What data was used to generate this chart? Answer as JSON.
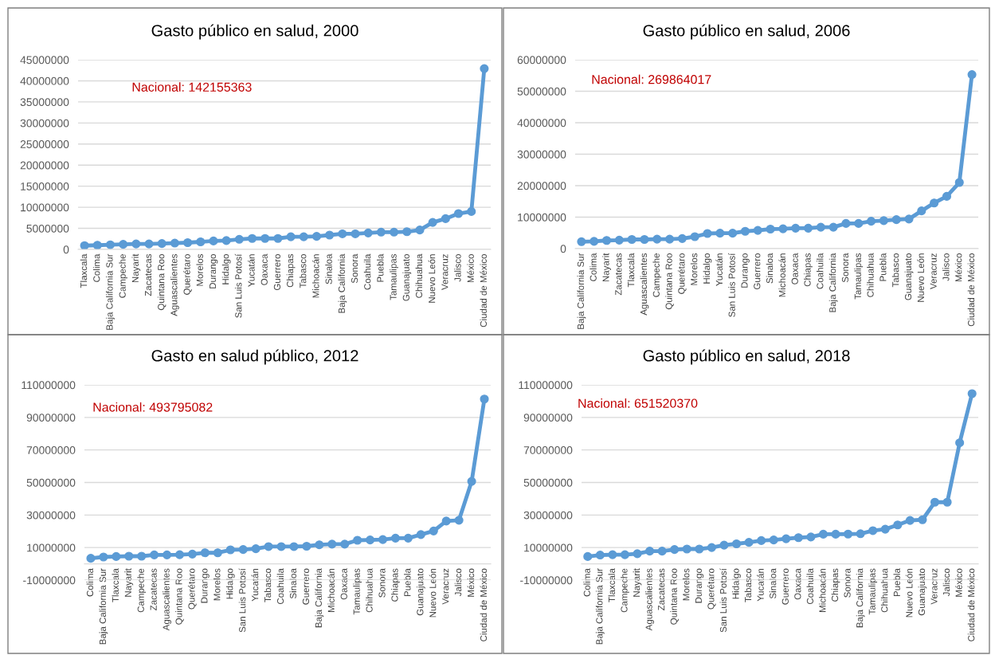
{
  "chart_data": [
    {
      "type": "line",
      "title": "Gasto público en salud, 2000",
      "annotations": [
        "Nacional: 142155363"
      ],
      "grid": "y",
      "marker": "circle",
      "line_style": "solid",
      "categories": [
        "Tlaxcala",
        "Colima",
        "Baja California Sur",
        "Campeche",
        "Nayarit",
        "Zacatecas",
        "Quintana Roo",
        "Aguascalientes",
        "Querétaro",
        "Morelos",
        "Durango",
        "Hidalgo",
        "San Luis Potosí",
        "Yucatán",
        "Oaxaca",
        "Guerrero",
        "Chiapas",
        "Tabasco",
        "Michoacán",
        "Sinaloa",
        "Baja California",
        "Sonora",
        "Coahuila",
        "Puebla",
        "Tamaulipas",
        "Guanajuato",
        "Chihuahua",
        "Nuevo León",
        "Veracruz",
        "Jalisco",
        "México",
        "Ciudad de México"
      ],
      "series": [
        {
          "color": "#5b9bd5",
          "values": [
            900000,
            1000000,
            1100000,
            1200000,
            1300000,
            1300000,
            1400000,
            1500000,
            1600000,
            1800000,
            2000000,
            2100000,
            2400000,
            2600000,
            2600000,
            2600000,
            3000000,
            3000000,
            3100000,
            3400000,
            3700000,
            3700000,
            3900000,
            4100000,
            4100000,
            4200000,
            4600000,
            6400000,
            7300000,
            8500000,
            9000000,
            42900000
          ]
        }
      ],
      "ylim": [
        0,
        45000000
      ],
      "yticks": [
        0,
        5000000,
        10000000,
        15000000,
        20000000,
        25000000,
        30000000,
        35000000,
        40000000,
        45000000
      ]
    },
    {
      "type": "line",
      "title": "Gasto público en salud, 2006",
      "annotations": [
        "Nacional: 269864017"
      ],
      "grid": "y",
      "marker": "circle",
      "line_style": "solid",
      "categories": [
        "Baja California Sur",
        "Colima",
        "Nayarit",
        "Zacatecas",
        "Tlaxcala",
        "Aguascalientes",
        "Campeche",
        "Quintana Roo",
        "Querétaro",
        "Morelos",
        "Hidalgo",
        "Yucatán",
        "San Luis Potosí",
        "Durango",
        "Guerrero",
        "Sinaloa",
        "Michoacán",
        "Oaxaca",
        "Chiapas",
        "Coahuila",
        "Baja California",
        "Sonora",
        "Tamaulipas",
        "Chihuahua",
        "Puebla",
        "Tabasco",
        "Guanajuato",
        "Nuevo León",
        "Veracruz",
        "Jalisco",
        "México",
        "Ciudad de México"
      ],
      "series": [
        {
          "color": "#5b9bd5",
          "values": [
            2200000,
            2300000,
            2600000,
            2700000,
            2900000,
            2900000,
            3000000,
            3000000,
            3200000,
            3800000,
            4800000,
            4900000,
            4900000,
            5500000,
            5800000,
            6200000,
            6300000,
            6500000,
            6500000,
            6800000,
            6800000,
            8000000,
            8000000,
            8700000,
            8900000,
            9200000,
            9400000,
            12000000,
            14500000,
            16600000,
            21000000,
            55300000
          ]
        }
      ],
      "ylim": [
        0,
        60000000
      ],
      "yticks": [
        0,
        10000000,
        20000000,
        30000000,
        40000000,
        50000000,
        60000000
      ]
    },
    {
      "type": "line",
      "title": "Gasto en salud público, 2012",
      "annotations": [
        "Nacional: 493795082"
      ],
      "grid": "y",
      "marker": "circle",
      "line_style": "solid",
      "categories": [
        "Colima",
        "Baja California Sur",
        "Tlaxcala",
        "Nayarit",
        "Campeche",
        "Zacatecas",
        "Aguascalientes",
        "Quintana Roo",
        "Querétaro",
        "Durango",
        "Morelos",
        "Hidalgo",
        "San Luis Potosí",
        "Yucatán",
        "Tabasco",
        "Coahuila",
        "Sinaloa",
        "Guerrero",
        "Baja California",
        "Michoacán",
        "Oaxaca",
        "Tamaulipas",
        "Chihuahua",
        "Sonora",
        "Chiapas",
        "Puebla",
        "Guanajuato",
        "Nuevo León",
        "Veracruz",
        "Jalisco",
        "México",
        "Ciudad de México"
      ],
      "series": [
        {
          "color": "#5b9bd5",
          "values": [
            3400000,
            4200000,
            4500000,
            4700000,
            4700000,
            5500000,
            5500000,
            5600000,
            6000000,
            6800000,
            6800000,
            8600000,
            8800000,
            9300000,
            10600000,
            10600000,
            10600000,
            10800000,
            11700000,
            12100000,
            12100000,
            14500000,
            14700000,
            14900000,
            15800000,
            15800000,
            18000000,
            20200000,
            26300000,
            26800000,
            50700000,
            101300000
          ]
        }
      ],
      "ylim": [
        -10000000,
        110000000
      ],
      "yticks": [
        -10000000,
        10000000,
        30000000,
        50000000,
        70000000,
        90000000,
        110000000
      ]
    },
    {
      "type": "line",
      "title": "Gasto público en salud, 2018",
      "annotations": [
        "Nacional: 651520370"
      ],
      "grid": "y",
      "marker": "circle",
      "line_style": "solid",
      "categories": [
        "Colima",
        "Baja California Sur",
        "Tlaxcala",
        "Campeche",
        "Nayarit",
        "Aguascalientes",
        "Zacatecas",
        "Quintana Roo",
        "Morelos",
        "Durango",
        "Querétaro",
        "San Luis Potosí",
        "Hidalgo",
        "Tabasco",
        "Yucatán",
        "Sinaloa",
        "Guerrero",
        "Oaxaca",
        "Coahuila",
        "Michoacán",
        "Chiapas",
        "Sonora",
        "Baja California",
        "Tamaulipas",
        "Chihuahua",
        "Puebla",
        "Nuevo León",
        "Guanajuato",
        "Veracruz",
        "Jalisco",
        "México",
        "Ciudad de México"
      ],
      "series": [
        {
          "color": "#5b9bd5",
          "values": [
            4500000,
            5400000,
            5600000,
            5600000,
            6200000,
            7800000,
            7800000,
            8800000,
            9100000,
            9100000,
            10000000,
            11500000,
            12300000,
            13200000,
            14300000,
            14700000,
            15400000,
            16100000,
            16500000,
            18200000,
            18200000,
            18300000,
            18500000,
            20400000,
            21300000,
            23900000,
            26700000,
            27100000,
            37900000,
            37900000,
            74400000,
            104600000
          ]
        }
      ],
      "ylim": [
        -10000000,
        110000000
      ],
      "yticks": [
        -10000000,
        10000000,
        30000000,
        50000000,
        70000000,
        90000000,
        110000000
      ]
    }
  ]
}
